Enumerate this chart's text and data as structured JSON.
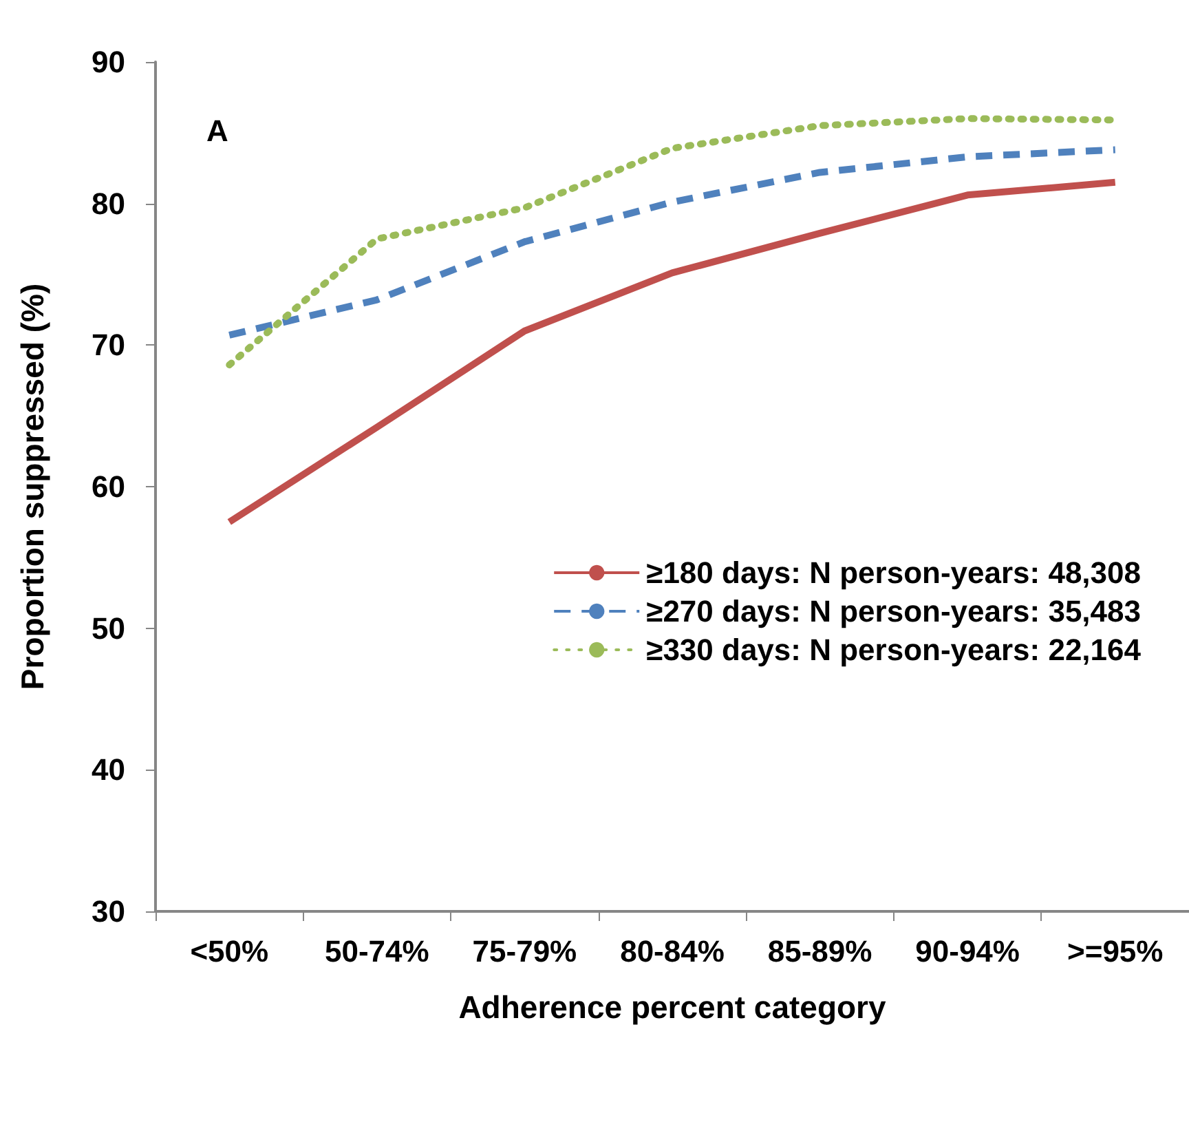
{
  "chart_data": {
    "type": "line",
    "xlabel": "Adherence percent category",
    "ylabel": "Proportion suppressed (%)",
    "annotations": [
      "A"
    ],
    "categories": [
      "<50%",
      "50-74%",
      "75-79%",
      "80-84%",
      "85-89%",
      "90-94%",
      ">=95%"
    ],
    "series": [
      {
        "name": "≥180 days: N person-years: 48,308",
        "color": "#c0504d",
        "line_style": "solid",
        "values": [
          57.5,
          64.2,
          71.0,
          75.1,
          77.9,
          80.6,
          81.5
        ]
      },
      {
        "name": "≥270 days: N person-years: 35,483",
        "color": "#4f81bd",
        "line_style": "dashed",
        "values": [
          70.7,
          73.2,
          77.3,
          80.1,
          82.2,
          83.3,
          83.8
        ]
      },
      {
        "name": "≥330 days: N person-years: 22,164",
        "color": "#9bbb59",
        "line_style": "dotted",
        "values": [
          68.6,
          77.5,
          79.7,
          83.9,
          85.5,
          86.0,
          85.9
        ]
      }
    ],
    "ylim": [
      30,
      90
    ],
    "yticks": [
      30,
      40,
      50,
      60,
      70,
      80,
      90
    ],
    "grid": false,
    "legend": "right",
    "marker": "none"
  }
}
